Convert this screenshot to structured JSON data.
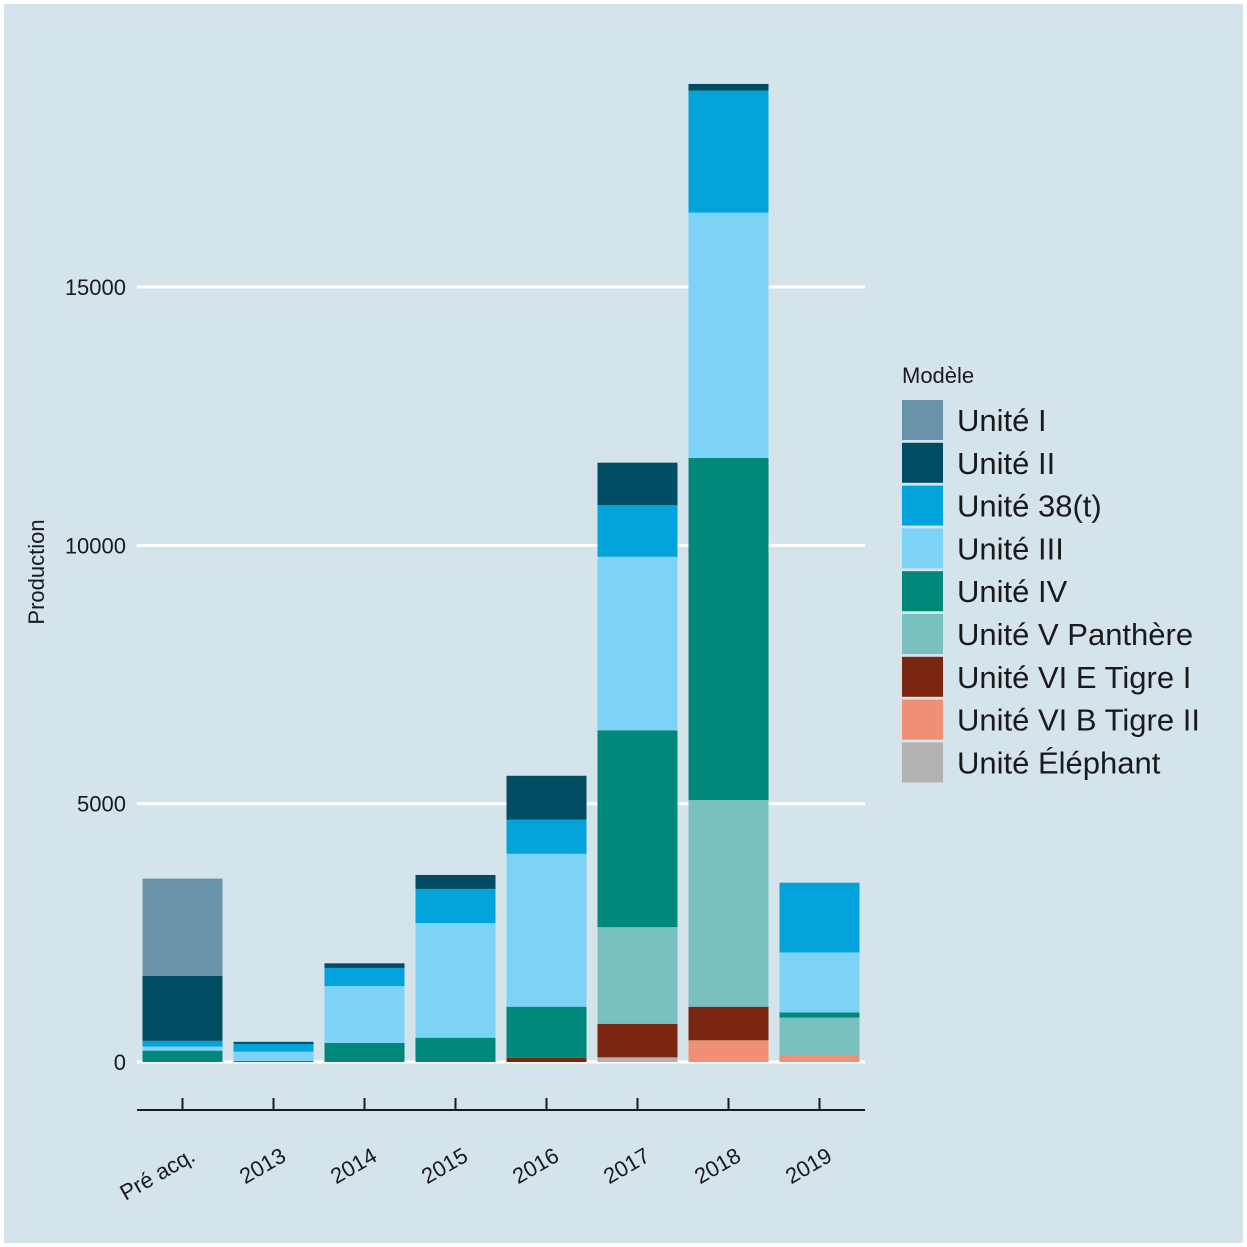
{
  "colors": {
    "panel_background": "#d5e4eb",
    "grid": "#ffffff",
    "axis": "#1a1a1a"
  },
  "chart_data": {
    "type": "bar",
    "stacked": true,
    "title": "",
    "xlabel": "",
    "ylabel": "Production",
    "ylim": [
      0,
      19000
    ],
    "yticks": [
      0,
      5000,
      10000,
      15000
    ],
    "grid": "horizontal",
    "legend_title": "Modèle",
    "legend_position": "right",
    "categories": [
      "Pré acq.",
      "2013",
      "2014",
      "2015",
      "2016",
      "2017",
      "2018",
      "2019"
    ],
    "series": [
      {
        "name": "Unité Éléphant",
        "color": "#b2b2b2",
        "values": [
          0,
          0,
          0,
          0,
          0,
          90,
          0,
          0
        ]
      },
      {
        "name": "Unité VI B Tigre II",
        "color": "#ef8f74",
        "values": [
          0,
          0,
          0,
          0,
          0,
          0,
          420,
          140
        ]
      },
      {
        "name": "Unité VI E Tigre I",
        "color": "#7a2610",
        "values": [
          0,
          0,
          0,
          0,
          80,
          650,
          650,
          0
        ]
      },
      {
        "name": "Unité V Panthère",
        "color": "#79c0c1",
        "values": [
          0,
          0,
          0,
          0,
          0,
          1870,
          4000,
          720
        ]
      },
      {
        "name": "Unité IV",
        "color": "#00897b",
        "values": [
          220,
          20,
          370,
          470,
          990,
          3810,
          6620,
          100
        ]
      },
      {
        "name": "Unité III",
        "color": "#7dd3f6",
        "values": [
          80,
          180,
          1100,
          2220,
          2960,
          3360,
          4750,
          1160
        ]
      },
      {
        "name": "Unité 38(t)",
        "color": "#02a2da",
        "values": [
          110,
          150,
          350,
          660,
          660,
          1000,
          2360,
          1350
        ]
      },
      {
        "name": "Unité II",
        "color": "#004c63",
        "values": [
          1260,
          40,
          90,
          270,
          850,
          820,
          130,
          0
        ]
      },
      {
        "name": "Unité I",
        "color": "#6893aa",
        "values": [
          1880,
          0,
          0,
          0,
          0,
          0,
          0,
          0
        ]
      }
    ],
    "legend_order": [
      "Unité I",
      "Unité II",
      "Unité 38(t)",
      "Unité III",
      "Unité IV",
      "Unité V Panthère",
      "Unité VI E Tigre I",
      "Unité VI B Tigre II",
      "Unité Éléphant"
    ]
  }
}
